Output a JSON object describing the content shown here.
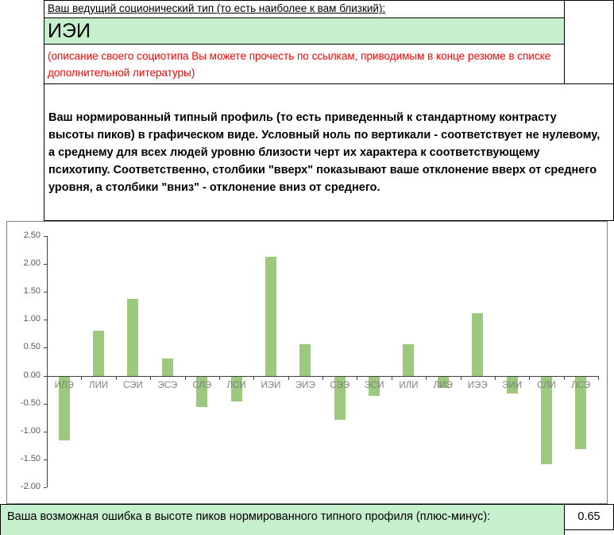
{
  "header": {
    "leading_type_label": "Ваш ведущий соционический тип (то есть наиболее к вам близкий):",
    "leading_type_value": "ИЭИ",
    "red_note": "(описание своего социотипа Вы можете прочесть по ссылкам, приводимым в конце резюме в списке дополнительной литературы)",
    "profile_description": "Ваш нормированный типный профиль (то есть приведенный к стандартному контрасту высоты пиков) в графическом виде. Условный ноль по вертикали - соответствует не нулевому, а среднему для всех людей уровню близости черт их характера к соответствующему психотипу. Соответственно, столбики \"вверх\" показывают ваше отклонение вверх от среднего уровня, а столбики \"вниз\" - отклонение вниз от среднего."
  },
  "footer": {
    "error_label": "Ваша возможная ошибка в высоте пиков нормированного типного профиля (плюс-минус):",
    "error_value": "0.65"
  },
  "colors": {
    "cell_green": "#c6efce",
    "bar_green": "#9cc97e",
    "note_red": "#ff0000",
    "y_axis_text": "#595959",
    "category_text": "#7f7f7f",
    "axis_line": "#404040"
  },
  "chart_data": {
    "type": "bar",
    "title": "",
    "xlabel": "",
    "ylabel": "",
    "categories": [
      "ИЛЭ",
      "ЛИИ",
      "СЭИ",
      "ЭСЭ",
      "СЛЭ",
      "ЛСИ",
      "ИЭИ",
      "ЭИЭ",
      "СЭЭ",
      "ЭСИ",
      "ИЛИ",
      "ЛИЭ",
      "ИЭЭ",
      "ЭИИ",
      "СЛИ",
      "ЛСЭ"
    ],
    "values": [
      -1.15,
      0.8,
      1.37,
      0.3,
      -0.55,
      -0.45,
      2.13,
      0.57,
      -0.78,
      -0.35,
      0.57,
      -0.2,
      1.12,
      -0.3,
      -1.58,
      -1.3
    ],
    "ylim": [
      -2.0,
      2.5
    ],
    "ytick_step": 0.5,
    "grid": false,
    "legend": false
  }
}
